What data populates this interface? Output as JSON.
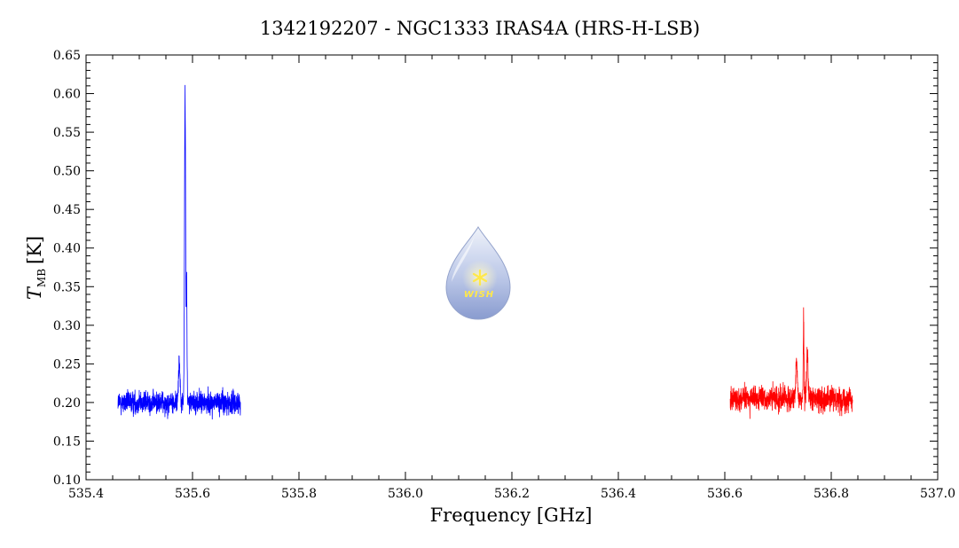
{
  "chart_data": {
    "type": "line",
    "title": "1342192207 - NGC1333 IRAS4A (HRS-H-LSB)",
    "xlabel": "Frequency [GHz]",
    "ylabel_main": "T",
    "ylabel_sub": "MB",
    "ylabel_unit": "[K]",
    "xlim": [
      535.4,
      537.0
    ],
    "ylim": [
      0.1,
      0.65
    ],
    "x_ticks": [
      535.4,
      535.6,
      535.8,
      536.0,
      536.2,
      536.4,
      536.6,
      536.8,
      537.0
    ],
    "x_tick_labels": [
      "535.4",
      "535.6",
      "535.8",
      "536.0",
      "536.2",
      "536.4",
      "536.6",
      "536.8",
      "537.0"
    ],
    "y_ticks": [
      0.1,
      0.15,
      0.2,
      0.25,
      0.3,
      0.35,
      0.4,
      0.45,
      0.5,
      0.55,
      0.6,
      0.65
    ],
    "y_tick_labels": [
      "0.10",
      "0.15",
      "0.20",
      "0.25",
      "0.30",
      "0.35",
      "0.40",
      "0.45",
      "0.50",
      "0.55",
      "0.60",
      "0.65"
    ],
    "grid": false,
    "series": [
      {
        "color": "#0000ff",
        "x_range": [
          535.46,
          535.69
        ],
        "baseline": 0.2,
        "noise": 0.022,
        "peaks": [
          {
            "x": 535.586,
            "y": 0.595,
            "width": 0.0015
          },
          {
            "x": 535.589,
            "y": 0.35,
            "width": 0.001
          },
          {
            "x": 535.575,
            "y": 0.255,
            "width": 0.002
          }
        ]
      },
      {
        "color": "#ff0000",
        "x_range": [
          536.61,
          536.84
        ],
        "baseline": 0.205,
        "noise": 0.024,
        "peaks": [
          {
            "x": 536.748,
            "y": 0.3,
            "width": 0.001
          },
          {
            "x": 536.755,
            "y": 0.265,
            "width": 0.002
          },
          {
            "x": 536.735,
            "y": 0.25,
            "width": 0.002
          }
        ]
      }
    ]
  },
  "logo": {
    "text": "WISH",
    "icon": "wish-droplet-logo",
    "colors": {
      "drop_top": "#e8eef8",
      "drop_bottom": "#8fa2d4",
      "star": "#ffe84a"
    }
  }
}
